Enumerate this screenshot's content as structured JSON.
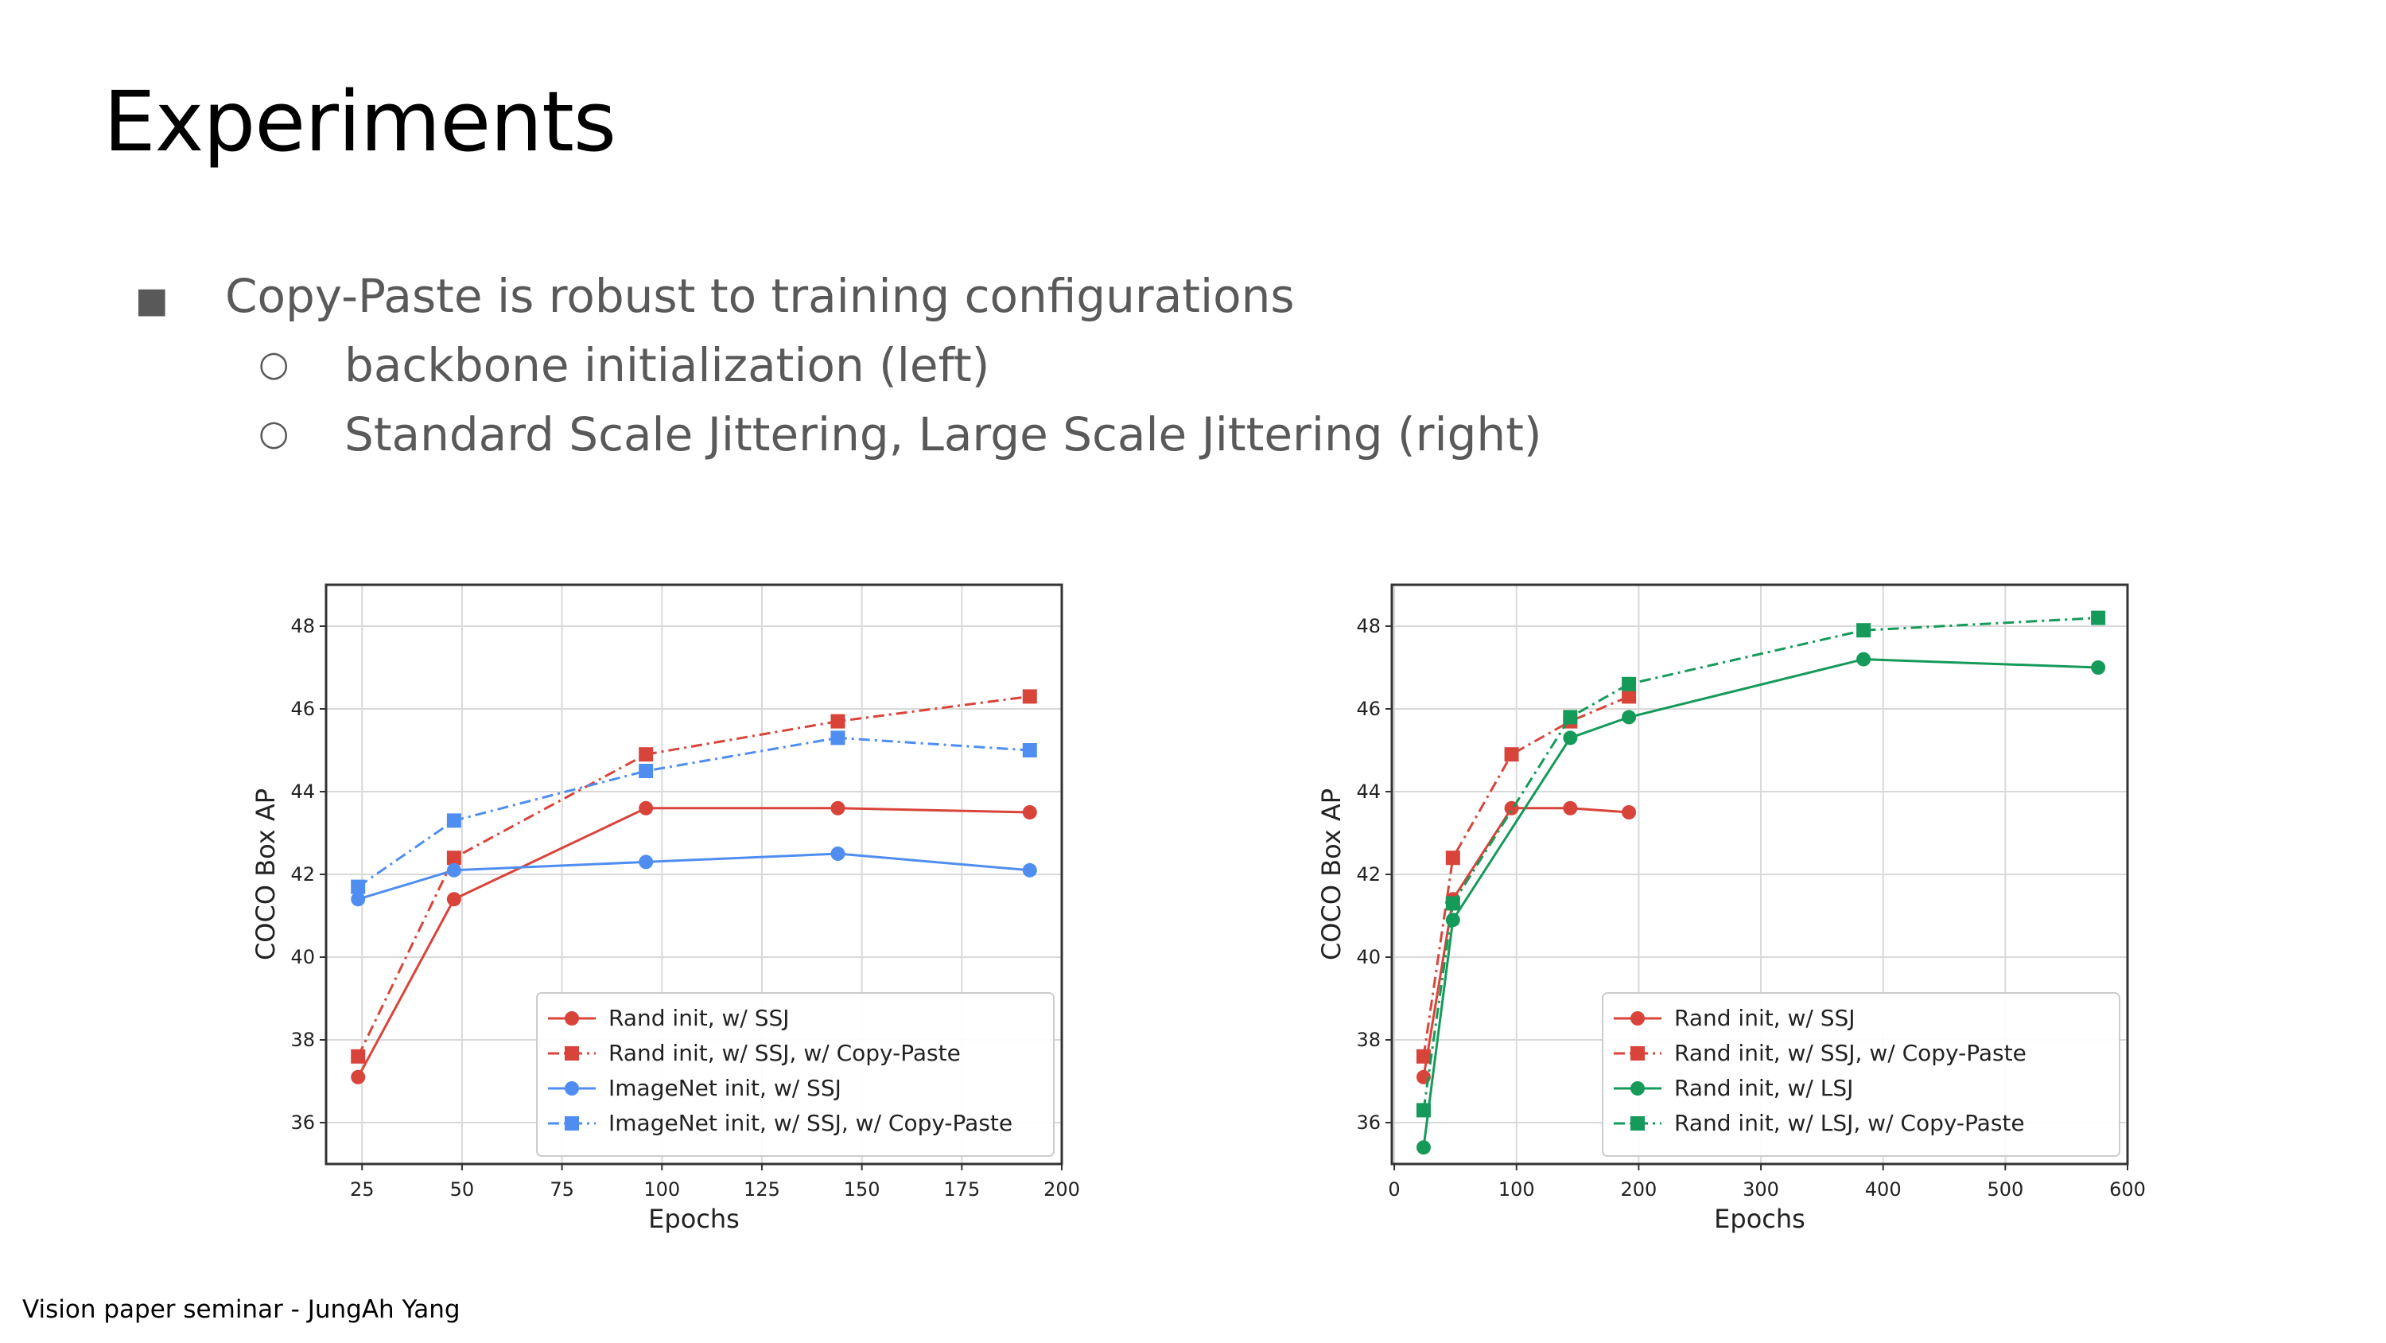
{
  "slide": {
    "title": "Experiments",
    "bullet": "Copy-Paste is robust to training configurations",
    "bullet_marker": "■",
    "sub_marker": "○",
    "sub_bullets": [
      "backbone initialization (left)",
      "Standard Scale Jittering, Large Scale Jittering (right)"
    ],
    "footer": "Vision paper seminar - JungAh Yang"
  },
  "chart_data": [
    {
      "type": "line",
      "xlabel": "Epochs",
      "ylabel": "COCO Box AP",
      "xlim": [
        16,
        200
      ],
      "ylim": [
        35,
        49
      ],
      "xticks": [
        25,
        50,
        75,
        100,
        125,
        150,
        175,
        200
      ],
      "yticks": [
        36,
        38,
        40,
        42,
        44,
        46,
        48
      ],
      "grid": true,
      "legend_position": "lower-right",
      "series": [
        {
          "name": "Rand init, w/ SSJ",
          "color": "#d9443a",
          "marker": "circle",
          "dash": "solid",
          "x": [
            24,
            48,
            96,
            144,
            192
          ],
          "y": [
            37.1,
            41.4,
            43.6,
            43.6,
            43.5
          ]
        },
        {
          "name": "Rand init, w/ SSJ, w/ Copy-Paste",
          "color": "#d9443a",
          "marker": "square",
          "dash": "dashdot",
          "x": [
            24,
            48,
            96,
            144,
            192
          ],
          "y": [
            37.6,
            42.4,
            44.9,
            45.7,
            46.3
          ]
        },
        {
          "name": "ImageNet init, w/ SSJ",
          "color": "#4f8ef0",
          "marker": "circle",
          "dash": "solid",
          "x": [
            24,
            48,
            96,
            144,
            192
          ],
          "y": [
            41.4,
            42.1,
            42.3,
            42.5,
            42.1
          ]
        },
        {
          "name": "ImageNet init, w/ SSJ, w/ Copy-Paste",
          "color": "#4f8ef0",
          "marker": "square",
          "dash": "dashdot",
          "x": [
            24,
            48,
            96,
            144,
            192
          ],
          "y": [
            41.7,
            43.3,
            44.5,
            45.3,
            45.0
          ]
        }
      ]
    },
    {
      "type": "line",
      "xlabel": "Epochs",
      "ylabel": "COCO Box AP",
      "xlim": [
        -2,
        600
      ],
      "ylim": [
        35,
        49
      ],
      "xticks": [
        0,
        100,
        200,
        300,
        400,
        500,
        600
      ],
      "yticks": [
        36,
        38,
        40,
        42,
        44,
        46,
        48
      ],
      "grid": true,
      "legend_position": "lower-right",
      "series": [
        {
          "name": "Rand init, w/ SSJ",
          "color": "#d9443a",
          "marker": "circle",
          "dash": "solid",
          "x": [
            24,
            48,
            96,
            144,
            192
          ],
          "y": [
            37.1,
            41.4,
            43.6,
            43.6,
            43.5
          ]
        },
        {
          "name": "Rand init, w/ SSJ, w/ Copy-Paste",
          "color": "#d9443a",
          "marker": "square",
          "dash": "dashdot",
          "x": [
            24,
            48,
            96,
            144,
            192
          ],
          "y": [
            37.6,
            42.4,
            44.9,
            45.7,
            46.3
          ]
        },
        {
          "name": "Rand init, w/ LSJ",
          "color": "#159a5a",
          "marker": "circle",
          "dash": "solid",
          "x": [
            24,
            48,
            144,
            192,
            384,
            576
          ],
          "y": [
            35.4,
            40.9,
            45.3,
            45.8,
            47.2,
            47.0
          ]
        },
        {
          "name": "Rand init, w/ LSJ, w/ Copy-Paste",
          "color": "#159a5a",
          "marker": "square",
          "dash": "dashdot",
          "x": [
            24,
            48,
            144,
            192,
            384,
            576
          ],
          "y": [
            36.3,
            41.3,
            45.8,
            46.6,
            47.9,
            48.2
          ]
        }
      ]
    }
  ]
}
